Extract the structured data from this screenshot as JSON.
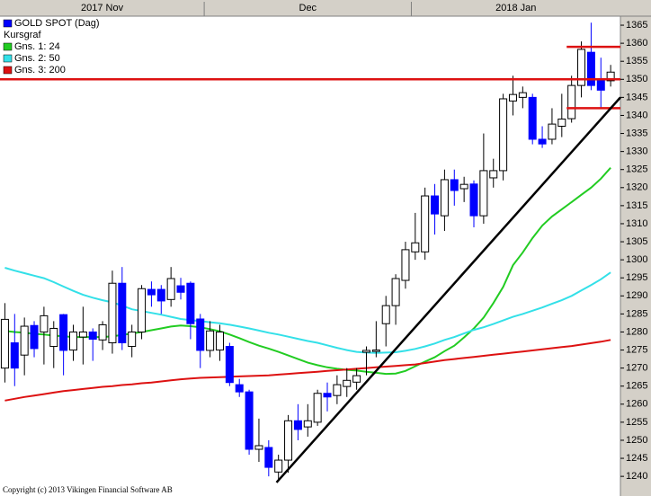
{
  "chart_data": {
    "type": "candlestick",
    "xlim": [
      -0.5,
      63
    ],
    "ylim": [
      1236.3,
      1367.5
    ],
    "yticks": [
      1240,
      1245,
      1250,
      1255,
      1260,
      1265,
      1270,
      1275,
      1280,
      1285,
      1290,
      1295,
      1300,
      1305,
      1310,
      1315,
      1320,
      1325,
      1330,
      1335,
      1340,
      1345,
      1350,
      1355,
      1360,
      1365
    ],
    "periods": [
      {
        "label": "2017 Nov",
        "start": -0.5,
        "end": 20.4
      },
      {
        "label": "Dec",
        "start": 20.4,
        "end": 41.6
      },
      {
        "label": "2018 Jan",
        "start": 41.6,
        "end": 63
      }
    ],
    "candles": {
      "name": "GOLD SPOT (Dag)",
      "color_down": "#0000ff",
      "color_up": "#ffffff",
      "open": [
        1270,
        1277,
        1273.6,
        1281.8,
        1280,
        1276,
        1284.8,
        1275,
        1278.6,
        1280,
        1277.8,
        1277,
        1293.5,
        1276,
        1280,
        1291.8,
        1291.8,
        1289,
        1292.8,
        1293.5,
        1283.6,
        1274.9,
        1275,
        1276,
        1265.4,
        1263.4,
        1247.5,
        1248,
        1241.2,
        1244.5,
        1255.4,
        1253.7,
        1255,
        1263,
        1262.4,
        1264.9,
        1266.1,
        1274.4,
        1274.6,
        1282.3,
        1287.3,
        1294.3,
        1302.2,
        1302.2,
        1317.7,
        1312.2,
        1322.2,
        1319.7,
        1321,
        1312.2,
        1322.7,
        1324.7,
        1344,
        1345,
        1345,
        1333.4,
        1333.4,
        1337,
        1339.1,
        1348.3,
        1357.5,
        1349.6,
        1349.6
      ],
      "high": [
        1288,
        1285,
        1284,
        1283,
        1287,
        1283,
        1285,
        1282,
        1287,
        1281,
        1283,
        1297,
        1298,
        1282,
        1293,
        1294,
        1293,
        1298,
        1295,
        1294,
        1285,
        1283,
        1282,
        1277,
        1267,
        1264,
        1256,
        1250,
        1246,
        1257,
        1260,
        1260,
        1264,
        1266,
        1268,
        1270,
        1270,
        1276,
        1283,
        1290,
        1296,
        1305,
        1313,
        1320,
        1321,
        1325,
        1325,
        1323,
        1322,
        1335,
        1328,
        1346,
        1351,
        1348,
        1346,
        1337,
        1342,
        1346,
        1351,
        1360.5,
        1365.7,
        1356,
        1354
      ],
      "low": [
        1266,
        1265,
        1268,
        1273,
        1271,
        1270,
        1268,
        1272,
        1271,
        1272,
        1275,
        1274,
        1275,
        1273,
        1278,
        1287,
        1285,
        1287,
        1289,
        1278,
        1270,
        1273,
        1272,
        1265,
        1262,
        1246,
        1244,
        1240,
        1239,
        1241,
        1250,
        1251,
        1254,
        1258,
        1260,
        1262,
        1264,
        1268,
        1273,
        1276,
        1282,
        1292,
        1300,
        1300,
        1307,
        1308,
        1315,
        1316,
        1309,
        1310,
        1320,
        1322,
        1340,
        1342,
        1332,
        1331,
        1332,
        1334,
        1338,
        1345,
        1347,
        1342,
        1348
      ],
      "close": [
        1283.5,
        1270,
        1281.6,
        1275.4,
        1284.5,
        1281,
        1274.9,
        1280,
        1280,
        1278,
        1282,
        1293.5,
        1277,
        1280,
        1292,
        1290.3,
        1288.6,
        1294.8,
        1291,
        1282.3,
        1274.9,
        1280.3,
        1280,
        1266,
        1263.4,
        1247.5,
        1248.5,
        1242.5,
        1244.5,
        1255.4,
        1253,
        1255.4,
        1263,
        1262,
        1265.4,
        1266.6,
        1267.9,
        1274.9,
        1275,
        1287.3,
        1294.8,
        1302.8,
        1304.7,
        1317.7,
        1312.7,
        1322.2,
        1319.2,
        1320.9,
        1312.2,
        1324.7,
        1324.7,
        1344.6,
        1345.8,
        1346.3,
        1333.4,
        1332.1,
        1337.6,
        1339,
        1348.3,
        1358.3,
        1348.3,
        1347,
        1352
      ]
    },
    "price_style_label": "Kursgraf",
    "series": [
      {
        "name": "Gns. 1: 24",
        "color": "#22cc22",
        "values": [
          1280.3,
          1280,
          1279.8,
          1279.5,
          1279.3,
          1279,
          1278.8,
          1278.6,
          1278.6,
          1278.6,
          1278.6,
          1278.8,
          1279.2,
          1279.6,
          1280,
          1280.5,
          1281,
          1281.5,
          1281.8,
          1281.6,
          1281.3,
          1280.8,
          1280.2,
          1279.3,
          1278.3,
          1277.2,
          1276.2,
          1275.4,
          1274.5,
          1273.5,
          1272.5,
          1271.5,
          1270.8,
          1270.2,
          1269.8,
          1269.5,
          1269.3,
          1269,
          1268.7,
          1268.4,
          1268.5,
          1269.2,
          1270.5,
          1271.8,
          1273,
          1274.7,
          1276.2,
          1278.5,
          1281,
          1284,
          1288,
          1292.5,
          1298.5,
          1302,
          1306,
          1309.5,
          1312,
          1314,
          1316,
          1318,
          1320,
          1322.5,
          1325.5
        ]
      },
      {
        "name": "Gns. 2: 50",
        "color": "#33e0e8",
        "values": [
          1297.8,
          1297,
          1296.3,
          1295.6,
          1294.9,
          1293.8,
          1292.6,
          1291.4,
          1290.3,
          1289.5,
          1288.8,
          1288.2,
          1287.3,
          1286.3,
          1285.8,
          1285.3,
          1284.8,
          1284.2,
          1283.6,
          1283.3,
          1283,
          1282.7,
          1282.4,
          1282,
          1281.5,
          1281,
          1280.4,
          1279.8,
          1279.3,
          1278.7,
          1278.1,
          1277.5,
          1277,
          1276.3,
          1275.6,
          1275,
          1274.5,
          1274.3,
          1274.2,
          1274.3,
          1274.4,
          1274.8,
          1275.3,
          1276,
          1276.8,
          1277.8,
          1278.6,
          1279.6,
          1280.6,
          1281.3,
          1282.2,
          1283.2,
          1284.2,
          1285,
          1285.9,
          1286.8,
          1287.8,
          1288.8,
          1290,
          1291.5,
          1293,
          1294.6,
          1296.5
        ]
      },
      {
        "name": "Gns. 3: 200",
        "color": "#dd1111",
        "values": [
          1261,
          1261.5,
          1262,
          1262.4,
          1262.8,
          1263.2,
          1263.6,
          1263.9,
          1264.2,
          1264.5,
          1264.8,
          1265,
          1265.3,
          1265.5,
          1265.8,
          1266,
          1266.3,
          1266.6,
          1266.9,
          1267.1,
          1267.3,
          1267.4,
          1267.5,
          1267.6,
          1267.7,
          1267.8,
          1267.9,
          1268,
          1268.2,
          1268.4,
          1268.6,
          1268.8,
          1269,
          1269.2,
          1269.4,
          1269.6,
          1269.8,
          1270,
          1270.2,
          1270.4,
          1270.6,
          1270.8,
          1271,
          1271.4,
          1271.8,
          1272.2,
          1272.5,
          1272.8,
          1273.1,
          1273.4,
          1273.7,
          1274,
          1274.3,
          1274.6,
          1274.9,
          1275.2,
          1275.5,
          1275.8,
          1276.1,
          1276.5,
          1276.9,
          1277.3,
          1277.8
        ]
      }
    ],
    "drawings": [
      {
        "color": "#dd1111",
        "x": [
          -0.5,
          63
        ],
        "y": [
          1350,
          1350
        ]
      },
      {
        "color": "#dd1111",
        "x": [
          57.5,
          63
        ],
        "y": [
          1359,
          1359
        ]
      },
      {
        "color": "#dd1111",
        "x": [
          57.5,
          63
        ],
        "y": [
          1342,
          1342
        ]
      },
      {
        "color": "#000000",
        "x": [
          27.8,
          63
        ],
        "y": [
          1238.3,
          1345
        ]
      }
    ],
    "footer": "Copyright (c) 2013 Vikingen Financial Software AB"
  }
}
